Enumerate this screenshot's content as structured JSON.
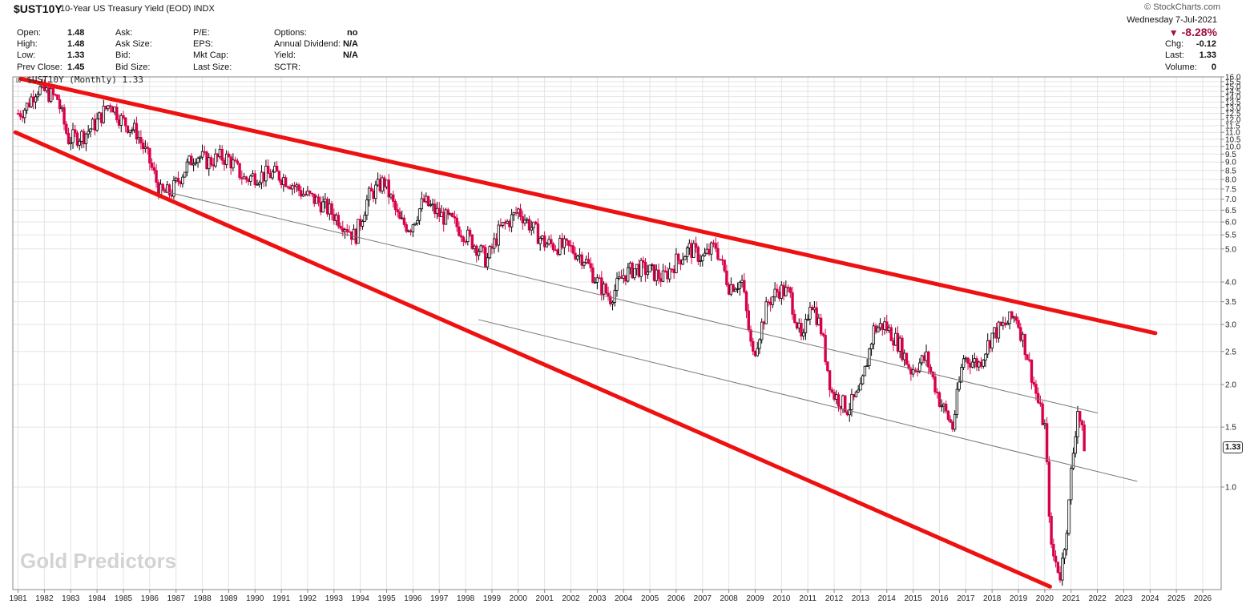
{
  "header": {
    "symbol": "$UST10Y",
    "description": "10-Year US Treasury Yield (EOD)",
    "exchange": "INDX",
    "brand": "© StockCharts.com",
    "date": "Wednesday  7-Jul-2021",
    "change_pct": "-8.28%",
    "col1": [
      {
        "label": "Open:",
        "value": "1.48"
      },
      {
        "label": "High:",
        "value": "1.48"
      },
      {
        "label": "Low:",
        "value": "1.33"
      },
      {
        "label": "Prev Close:",
        "value": "1.45"
      }
    ],
    "col2": [
      "Ask:",
      "Ask Size:",
      "Bid:",
      "Bid Size:"
    ],
    "col3": [
      "P/E:",
      "EPS:",
      "Mkt Cap:",
      "Last Size:"
    ],
    "col4": [
      {
        "label": "Options:",
        "value": "no"
      },
      {
        "label": "Annual Dividend:",
        "value": "N/A"
      },
      {
        "label": "Yield:",
        "value": "N/A"
      },
      {
        "label": "SCTR:",
        "value": ""
      }
    ],
    "right": [
      {
        "label": "Chg:",
        "value": "-0.12"
      },
      {
        "label": "Last:",
        "value": "1.33"
      },
      {
        "label": "Volume:",
        "value": "0"
      }
    ]
  },
  "legend": "☒ $UST10Y (Monthly) 1.33",
  "last_value_label": "1.33",
  "watermark": "Gold Predictors",
  "colors": {
    "up": "#000000",
    "down": "#d8004a",
    "trendline": "#ee1111",
    "midline": "#777777",
    "grid": "#e4e4e4"
  },
  "chart_data": {
    "type": "line",
    "title": "10-Year US Treasury Yield (EOD)",
    "scale": "log",
    "x_range": [
      1980.8,
      2026.7
    ],
    "y_range": [
      0.5,
      16.0
    ],
    "x_ticks": [
      "1981",
      "1982",
      "1983",
      "1984",
      "1985",
      "1986",
      "1987",
      "1988",
      "1989",
      "1990",
      "1991",
      "1992",
      "1993",
      "1994",
      "1995",
      "1996",
      "1997",
      "1998",
      "1999",
      "2000",
      "2001",
      "2002",
      "2003",
      "2004",
      "2005",
      "2006",
      "2007",
      "2008",
      "2009",
      "2010",
      "2011",
      "2012",
      "2013",
      "2014",
      "2015",
      "2016",
      "2017",
      "2018",
      "2019",
      "2020",
      "2021",
      "2022",
      "2023",
      "2024",
      "2025",
      "2026"
    ],
    "y_ticks": [
      16.0,
      15.5,
      15.0,
      14.5,
      14.0,
      13.5,
      13.0,
      12.5,
      12.0,
      11.5,
      11.0,
      10.5,
      10.0,
      9.5,
      9.0,
      8.5,
      8.0,
      7.5,
      7.0,
      6.5,
      6.0,
      5.5,
      5.0,
      4.0,
      3.5,
      3.0,
      2.5,
      2.0,
      1.5,
      1.0
    ],
    "series": [
      {
        "x": [
          1981.0,
          1981.3,
          1981.7,
          1982.0,
          1982.5,
          1982.9,
          1983.5,
          1984.0,
          1984.5,
          1984.9,
          1985.5,
          1986.0,
          1986.4,
          1986.8,
          1987.3,
          1987.75,
          1988.2,
          1988.7,
          1989.0,
          1989.6,
          1990.0,
          1990.8,
          1991.3,
          1991.8,
          1992.5,
          1993.0,
          1993.5,
          1993.8,
          1994.3,
          1994.9,
          1995.5,
          1995.9,
          1996.4,
          1997.0,
          1997.5,
          1998.0,
          1998.5,
          1998.8,
          1999.3,
          1999.8,
          2000.0,
          2000.5,
          2001.0,
          2001.5,
          2002.0,
          2002.5,
          2003.0,
          2003.5,
          2004.0,
          2004.5,
          2005.0,
          2005.5,
          2006.0,
          2006.5,
          2007.0,
          2007.5,
          2008.0,
          2008.5,
          2008.9,
          2009.5,
          2009.9,
          2010.3,
          2010.8,
          2011.1,
          2011.5,
          2011.9,
          2012.5,
          2013.0,
          2013.5,
          2013.9,
          2014.5,
          2014.9,
          2015.5,
          2016.0,
          2016.5,
          2016.9,
          2017.5,
          2018.0,
          2018.5,
          2018.9,
          2019.3,
          2019.8,
          2020.0,
          2020.25,
          2020.6,
          2020.9,
          2021.0,
          2021.25,
          2021.5
        ],
        "values": [
          12.5,
          13.0,
          14.8,
          14.5,
          13.8,
          10.5,
          10.8,
          11.8,
          13.5,
          12.0,
          11.0,
          9.0,
          7.3,
          7.3,
          8.5,
          9.5,
          9.0,
          9.3,
          9.2,
          8.0,
          8.2,
          8.3,
          7.9,
          7.3,
          6.8,
          6.3,
          5.8,
          5.4,
          7.1,
          7.9,
          6.0,
          5.8,
          6.9,
          6.3,
          6.0,
          5.5,
          5.0,
          4.6,
          5.7,
          6.2,
          6.5,
          5.8,
          5.2,
          5.1,
          5.0,
          4.7,
          4.0,
          3.6,
          4.2,
          4.4,
          4.3,
          4.1,
          4.6,
          5.0,
          4.7,
          5.1,
          3.9,
          4.0,
          2.4,
          3.5,
          3.8,
          3.7,
          2.6,
          3.6,
          2.9,
          1.9,
          1.7,
          1.9,
          2.9,
          3.0,
          2.6,
          2.2,
          2.4,
          1.8,
          1.5,
          2.4,
          2.3,
          2.8,
          3.0,
          3.2,
          2.5,
          1.7,
          1.5,
          0.65,
          0.55,
          0.85,
          1.1,
          1.7,
          1.33
        ]
      }
    ],
    "annotations": [
      {
        "type": "trendline",
        "from": [
          1981.1,
          15.8
        ],
        "to": [
          2024.2,
          2.83
        ]
      },
      {
        "type": "trendline",
        "from": [
          1980.9,
          11.0
        ],
        "to": [
          2020.2,
          0.51
        ]
      },
      {
        "type": "trendline",
        "from": [
          1986.5,
          7.4
        ],
        "to": [
          2022.0,
          1.65
        ]
      },
      {
        "type": "trendline",
        "from": [
          1998.5,
          3.1
        ],
        "to": [
          2023.5,
          1.04
        ]
      }
    ]
  }
}
